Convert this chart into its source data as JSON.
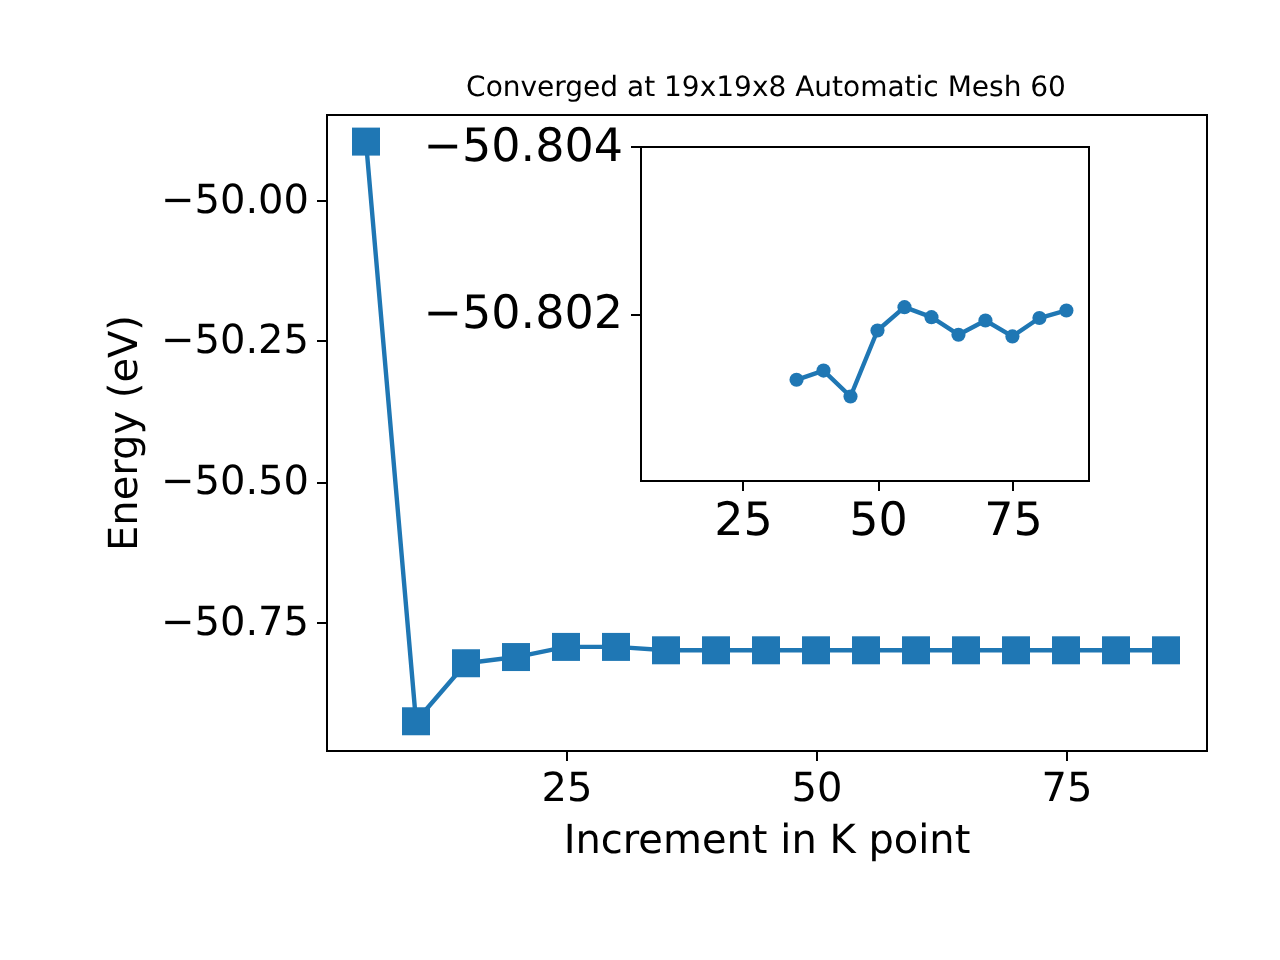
{
  "chart_data": [
    {
      "type": "line",
      "title": "Converged at 19x19x8 Automatic Mesh 60",
      "xlabel": "Increment in K point",
      "ylabel": "Energy (eV)",
      "x": [
        5,
        10,
        15,
        20,
        25,
        30,
        35,
        40,
        45,
        50,
        55,
        60,
        65,
        70,
        75,
        80,
        85
      ],
      "series": [
        {
          "color": "#1f77b4",
          "values": [
            -49.897,
            -50.926,
            -50.823,
            -50.812,
            -50.794,
            -50.794,
            -50.8,
            -50.8,
            -50.8,
            -50.8,
            -50.8,
            -50.8,
            -50.8,
            -50.8,
            -50.8,
            -50.8,
            -50.8
          ]
        }
      ],
      "xlim": [
        1,
        89
      ],
      "xticks": [
        25,
        50,
        75
      ],
      "ylim": [
        -50.977,
        -49.848
      ],
      "yticks": [
        {
          "value": -50.0,
          "label": "−50.00"
        },
        {
          "value": -50.25,
          "label": "−50.25"
        },
        {
          "value": -50.5,
          "label": "−50.50"
        },
        {
          "value": -50.75,
          "label": "−50.75"
        }
      ],
      "marker": "square",
      "grid": false
    },
    {
      "type": "line",
      "x": [
        35,
        40,
        45,
        50,
        55,
        60,
        65,
        70,
        75,
        80,
        85
      ],
      "series": [
        {
          "color": "#1f77b4",
          "values": [
            -50.8012,
            -50.80131,
            -50.801,
            -50.80179,
            -50.80207,
            -50.80195,
            -50.80174,
            -50.80191,
            -50.80172,
            -50.80194,
            -50.80203
          ]
        }
      ],
      "xlim": [
        6,
        89
      ],
      "xticks": [
        25,
        50,
        75
      ],
      "ylim": [
        -50.8,
        -50.804
      ],
      "yticks": [
        {
          "value": -50.804,
          "label": "−50.804"
        },
        {
          "value": -50.802,
          "label": "−50.802"
        }
      ],
      "marker": "circle",
      "grid": false
    }
  ]
}
